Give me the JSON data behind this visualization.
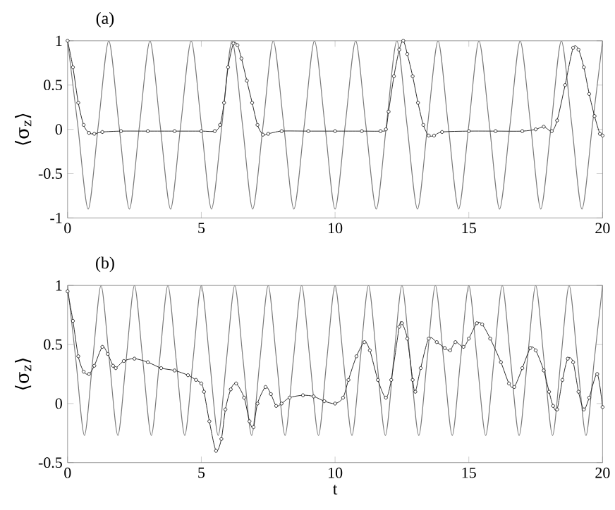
{
  "chart_data": [
    {
      "type": "line",
      "title": "(a)",
      "ylabel": "⟨σ$_{z}$⟩",
      "xlim": [
        0,
        20
      ],
      "ylim": [
        -1,
        1
      ],
      "xticks": [
        0,
        5,
        10,
        15,
        20
      ],
      "yticks": [
        -1,
        -0.5,
        0,
        0.5,
        1
      ],
      "grid": false,
      "series": [
        {
          "color": "#7a7a7a",
          "marker": "none",
          "x": [
            0,
            0.38,
            0.77,
            1.15,
            1.54,
            1.92,
            2.31,
            2.69,
            3.08,
            3.46,
            3.85,
            4.23,
            4.62,
            5.0,
            5.38,
            5.77,
            6.15,
            6.54,
            6.92,
            7.31,
            7.69,
            8.08,
            8.46,
            8.85,
            9.23,
            9.62,
            10.0,
            10.38,
            10.77,
            11.15,
            11.54,
            11.92,
            12.31,
            12.69,
            13.08,
            13.46,
            13.85,
            14.23,
            14.62,
            15.0,
            15.38,
            15.77,
            16.15,
            16.54,
            16.92,
            17.31,
            17.69,
            18.08,
            18.46,
            18.85,
            19.23,
            19.62,
            20.0
          ],
          "values": [
            1,
            0.05,
            -0.9,
            0.05,
            1,
            0.05,
            -0.9,
            0.05,
            1,
            0.05,
            -0.9,
            0.05,
            1,
            0.05,
            -0.9,
            0.05,
            1,
            0.05,
            -0.9,
            0.05,
            1,
            0.05,
            -0.9,
            0.05,
            1,
            0.05,
            -0.9,
            0.05,
            1,
            0.05,
            -0.9,
            0.05,
            1,
            0.05,
            -0.9,
            0.05,
            1,
            0.05,
            -0.9,
            0.05,
            1,
            0.05,
            -0.9,
            0.05,
            1,
            0.05,
            -0.9,
            0.05,
            1,
            0.05,
            -0.9,
            0.05,
            1
          ]
        },
        {
          "color": "#2a2a2a",
          "marker": "circle",
          "x": [
            0,
            0.2,
            0.4,
            0.6,
            0.8,
            1.0,
            1.3,
            2,
            3,
            4,
            5,
            5.5,
            5.7,
            5.85,
            6.0,
            6.2,
            6.35,
            6.5,
            6.7,
            6.9,
            7.1,
            7.3,
            7.5,
            8,
            9,
            10,
            11,
            11.7,
            11.9,
            12.0,
            12.2,
            12.4,
            12.55,
            12.7,
            12.9,
            13.1,
            13.3,
            13.5,
            13.7,
            14,
            15,
            16,
            17,
            17.5,
            17.8,
            18.1,
            18.3,
            18.6,
            18.9,
            19.1,
            19.3,
            19.5,
            19.7,
            19.9,
            20
          ],
          "values": [
            1,
            0.7,
            0.3,
            0.05,
            -0.04,
            -0.05,
            -0.03,
            -0.02,
            -0.02,
            -0.02,
            -0.02,
            -0.02,
            0.05,
            0.3,
            0.7,
            0.97,
            0.95,
            0.8,
            0.55,
            0.3,
            0.05,
            -0.06,
            -0.05,
            -0.02,
            -0.02,
            -0.02,
            -0.02,
            -0.02,
            0.0,
            0.2,
            0.6,
            0.9,
            1.0,
            0.85,
            0.6,
            0.3,
            0.05,
            -0.07,
            -0.07,
            -0.03,
            -0.02,
            -0.02,
            -0.02,
            0.0,
            0.03,
            -0.02,
            0.1,
            0.5,
            0.92,
            0.9,
            0.7,
            0.4,
            0.15,
            -0.05,
            -0.07
          ]
        }
      ]
    },
    {
      "type": "line",
      "title": "(b)",
      "xlabel": "t",
      "ylabel": "⟨σ$_{z}$⟩",
      "xlim": [
        0,
        20
      ],
      "ylim": [
        -0.5,
        1
      ],
      "xticks": [
        0,
        5,
        10,
        15,
        20
      ],
      "yticks": [
        -0.5,
        0,
        0.5,
        1
      ],
      "grid": false,
      "series": [
        {
          "color": "#7a7a7a",
          "marker": "none",
          "x": [
            0,
            0.31,
            0.63,
            0.94,
            1.25,
            1.56,
            1.88,
            2.19,
            2.5,
            2.81,
            3.13,
            3.44,
            3.75,
            4.06,
            4.38,
            4.69,
            5,
            5.31,
            5.63,
            5.94,
            6.25,
            6.56,
            6.88,
            7.19,
            7.5,
            7.81,
            8.13,
            8.44,
            8.75,
            9.06,
            9.38,
            9.69,
            10,
            10.31,
            10.63,
            10.94,
            11.25,
            11.56,
            11.88,
            12.19,
            12.5,
            12.81,
            13.13,
            13.44,
            13.75,
            14.06,
            14.38,
            14.69,
            15,
            15.31,
            15.63,
            15.94,
            16.25,
            16.56,
            16.88,
            17.19,
            17.5,
            17.81,
            18.13,
            18.44,
            18.75,
            19.06,
            19.38,
            19.69,
            20
          ],
          "values": [
            1,
            0.37,
            -0.27,
            0.37,
            1,
            0.37,
            -0.27,
            0.37,
            1,
            0.37,
            -0.27,
            0.37,
            1,
            0.37,
            -0.27,
            0.37,
            1,
            0.37,
            -0.27,
            0.37,
            1,
            0.37,
            -0.27,
            0.37,
            1,
            0.37,
            -0.27,
            0.37,
            1,
            0.37,
            -0.27,
            0.37,
            1,
            0.37,
            -0.27,
            0.37,
            1,
            0.37,
            -0.27,
            0.37,
            1,
            0.37,
            -0.27,
            0.37,
            1,
            0.37,
            -0.27,
            0.37,
            1,
            0.37,
            -0.27,
            0.37,
            1,
            0.37,
            -0.27,
            0.37,
            1,
            0.37,
            -0.27,
            0.37,
            1,
            0.37,
            -0.27,
            0.37,
            1
          ]
        },
        {
          "color": "#2a2a2a",
          "marker": "circle",
          "x": [
            0,
            0.2,
            0.4,
            0.6,
            0.8,
            1.0,
            1.3,
            1.5,
            1.7,
            1.8,
            2.1,
            2.5,
            3.0,
            3.5,
            4.0,
            4.5,
            4.8,
            5.0,
            5.1,
            5.3,
            5.55,
            5.75,
            5.9,
            6.1,
            6.3,
            6.6,
            6.8,
            6.95,
            7.1,
            7.4,
            7.6,
            7.8,
            8.0,
            8.3,
            8.8,
            9.2,
            9.6,
            10.0,
            10.3,
            10.5,
            10.8,
            11.1,
            11.3,
            11.6,
            11.9,
            12.1,
            12.4,
            12.5,
            12.7,
            12.9,
            13.0,
            13.2,
            13.5,
            13.8,
            14.1,
            14.3,
            14.5,
            14.8,
            15.0,
            15.3,
            15.5,
            15.8,
            16.2,
            16.5,
            16.7,
            17.0,
            17.3,
            17.5,
            17.8,
            18.0,
            18.15,
            18.3,
            18.5,
            18.7,
            18.9,
            19.1,
            19.3,
            19.5,
            19.8,
            20
          ],
          "values": [
            0.95,
            0.7,
            0.4,
            0.27,
            0.25,
            0.32,
            0.48,
            0.42,
            0.32,
            0.3,
            0.36,
            0.38,
            0.35,
            0.3,
            0.28,
            0.24,
            0.2,
            0.17,
            0.1,
            -0.15,
            -0.4,
            -0.3,
            -0.05,
            0.12,
            0.17,
            0.05,
            -0.15,
            -0.2,
            0.0,
            0.14,
            0.08,
            -0.02,
            0.0,
            0.05,
            0.07,
            0.06,
            0.02,
            0.0,
            0.05,
            0.2,
            0.4,
            0.52,
            0.45,
            0.2,
            0.05,
            0.2,
            0.65,
            0.68,
            0.55,
            0.2,
            0.1,
            0.3,
            0.55,
            0.52,
            0.47,
            0.45,
            0.52,
            0.48,
            0.55,
            0.68,
            0.67,
            0.55,
            0.35,
            0.17,
            0.14,
            0.3,
            0.47,
            0.45,
            0.28,
            0.1,
            -0.02,
            -0.05,
            0.2,
            0.38,
            0.35,
            0.1,
            -0.05,
            0.05,
            0.25,
            -0.03
          ]
        }
      ]
    }
  ]
}
